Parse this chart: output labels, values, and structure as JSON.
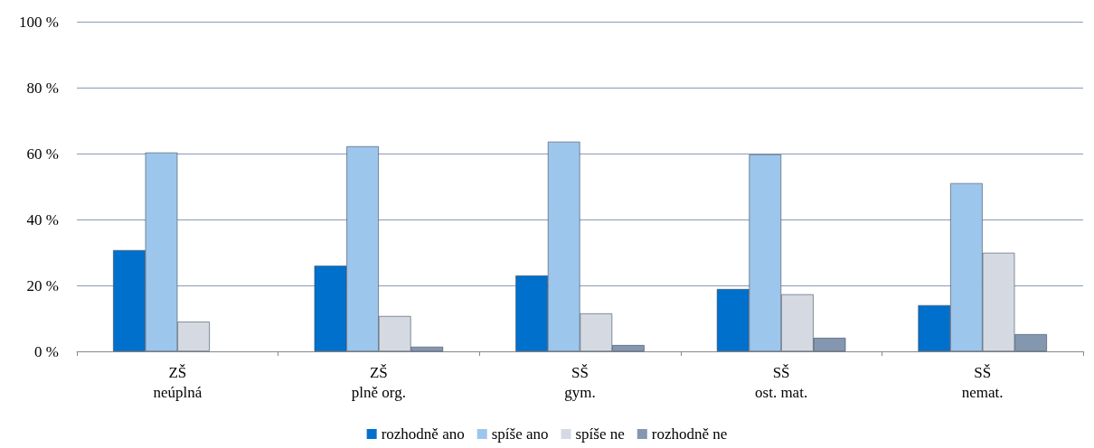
{
  "chart_data": {
    "type": "bar",
    "categories": [
      "ZŠ\nneúplná",
      "ZŠ\nplně org.",
      "SŠ\ngym.",
      "SŠ\nost. mat.",
      "SŠ\nnemat."
    ],
    "series": [
      {
        "name": "rozhodně ano",
        "color": "#0070cd",
        "values": [
          30.7,
          26.0,
          23.0,
          18.9,
          14.0
        ]
      },
      {
        "name": "spíše ano",
        "color": "#9dc6ec",
        "values": [
          60.3,
          62.2,
          63.6,
          59.7,
          51.0
        ]
      },
      {
        "name": "spíše ne",
        "color": "#d5dae2",
        "values": [
          9.0,
          10.7,
          11.5,
          17.3,
          29.9
        ]
      },
      {
        "name": "rozhodně ne",
        "color": "#8497b0",
        "values": [
          null,
          1.4,
          1.9,
          4.1,
          5.2
        ]
      }
    ],
    "ylim": [
      0,
      100
    ],
    "yticks": [
      {
        "value": 0,
        "label": "0 %"
      },
      {
        "value": 20,
        "label": "20 %"
      },
      {
        "value": 40,
        "label": "40 %"
      },
      {
        "value": 60,
        "label": "60 %"
      },
      {
        "value": 80,
        "label": "80 %"
      },
      {
        "value": 100,
        "label": "100 %"
      }
    ],
    "grid": "y",
    "legend": "bottom"
  }
}
